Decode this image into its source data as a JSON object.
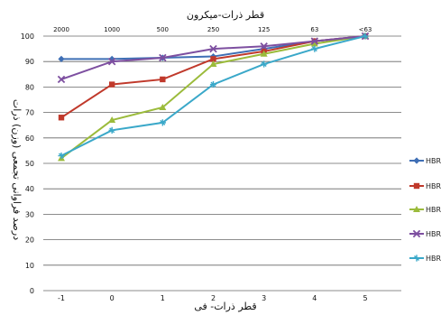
{
  "chart_data": {
    "type": "line",
    "x": [
      -1,
      0,
      1,
      2,
      3,
      4,
      5
    ],
    "xlabel": "قطر ذرات- فی",
    "x2label": "قطر ذرات-میکرون",
    "x2ticks": [
      "2000",
      "1000",
      "500",
      "250",
      "125",
      "63",
      "<63"
    ],
    "ylabel": "درصد فراوانی تجمعی (وزن) ذرات",
    "ylim": [
      0,
      100
    ],
    "yticks": [
      0,
      10,
      20,
      30,
      40,
      50,
      60,
      70,
      80,
      90,
      100
    ],
    "grid": true,
    "legend_position": "right",
    "series": [
      {
        "name": "HBRA",
        "color": "#3f6fb5",
        "marker": "diamond",
        "values": [
          91,
          91,
          91.5,
          92,
          95,
          98,
          100
        ]
      },
      {
        "name": "HBRB",
        "color": "#c0392b",
        "marker": "square",
        "values": [
          68,
          81,
          83,
          91,
          94,
          98,
          100
        ]
      },
      {
        "name": "HBRC",
        "color": "#9bbb3b",
        "marker": "triangle",
        "values": [
          52,
          67,
          72,
          89,
          93,
          97,
          100
        ]
      },
      {
        "name": "HBRD",
        "color": "#7d4fa0",
        "marker": "x",
        "values": [
          83,
          90,
          91.5,
          95,
          96,
          98,
          100
        ]
      },
      {
        "name": "HBRE",
        "color": "#3aa8c9",
        "marker": "star",
        "values": [
          53,
          63,
          66,
          81,
          89,
          95,
          100
        ]
      }
    ]
  }
}
